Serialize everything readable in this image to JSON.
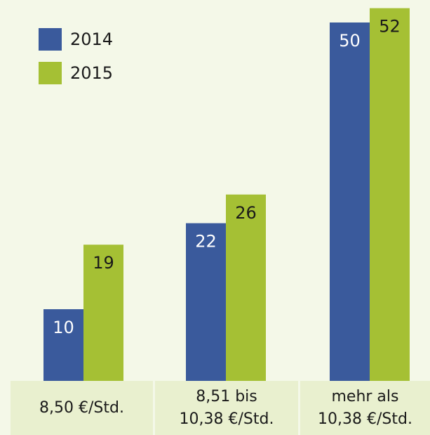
{
  "chart_data": {
    "type": "bar",
    "categories": [
      "8,50 €/Std.",
      "8,51 bis\n10,38 €/Std.",
      "mehr als\n10,38 €/Std."
    ],
    "series": [
      {
        "name": "2014",
        "color": "#3a5a9c",
        "values": [
          10,
          22,
          50
        ]
      },
      {
        "name": "2015",
        "color": "#a5c034",
        "values": [
          19,
          26,
          52
        ]
      }
    ],
    "legend": "top-left"
  }
}
